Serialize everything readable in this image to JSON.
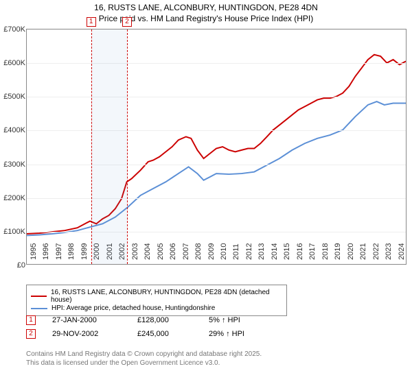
{
  "chart": {
    "type": "line",
    "title_line1": "16, RUSTS LANE, ALCONBURY, HUNTINGDON, PE28 4DN",
    "title_line2": "Price paid vs. HM Land Registry's House Price Index (HPI)",
    "title_fontsize": 12,
    "plot_bg": "#ffffff",
    "border_color": "#888888",
    "grid_color": "#eeeeee",
    "x": {
      "min": 1995,
      "max": 2025,
      "ticks": [
        1995,
        1996,
        1997,
        1998,
        1999,
        2000,
        2001,
        2002,
        2003,
        2004,
        2005,
        2006,
        2007,
        2008,
        2009,
        2010,
        2011,
        2012,
        2013,
        2014,
        2015,
        2016,
        2017,
        2018,
        2019,
        2020,
        2021,
        2022,
        2023,
        2024
      ],
      "label_fontsize": 11,
      "label_rotation": -90
    },
    "y": {
      "min": 0,
      "max": 700000,
      "ticks": [
        0,
        100000,
        200000,
        300000,
        400000,
        500000,
        600000,
        700000
      ],
      "tick_labels": [
        "£0",
        "£100K",
        "£200K",
        "£300K",
        "£400K",
        "£500K",
        "£600K",
        "£700K"
      ],
      "label_fontsize": 11
    },
    "shaded_region": {
      "x_start": 2000.07,
      "x_end": 2002.91,
      "color": "rgba(100,150,200,0.08)"
    },
    "markers": [
      {
        "id": "1",
        "x": 2000.07,
        "color": "#cc0000",
        "box_top_offset": -18
      },
      {
        "id": "2",
        "x": 2002.91,
        "color": "#cc0000",
        "box_top_offset": -18
      }
    ],
    "series": [
      {
        "name": "price_paid",
        "label": "16, RUSTS LANE, ALCONBURY, HUNTINGDON, PE28 4DN (detached house)",
        "color": "#cc0000",
        "line_width": 2,
        "data": [
          [
            1995,
            90000
          ],
          [
            1996,
            92000
          ],
          [
            1997,
            96000
          ],
          [
            1998,
            100000
          ],
          [
            1999,
            108000
          ],
          [
            2000,
            128000
          ],
          [
            2000.5,
            120000
          ],
          [
            2001,
            135000
          ],
          [
            2001.5,
            145000
          ],
          [
            2002,
            165000
          ],
          [
            2002.5,
            195000
          ],
          [
            2002.91,
            245000
          ],
          [
            2003.3,
            255000
          ],
          [
            2004,
            280000
          ],
          [
            2004.6,
            305000
          ],
          [
            2005,
            310000
          ],
          [
            2005.5,
            320000
          ],
          [
            2006,
            335000
          ],
          [
            2006.5,
            350000
          ],
          [
            2007,
            370000
          ],
          [
            2007.6,
            380000
          ],
          [
            2008,
            375000
          ],
          [
            2008.5,
            340000
          ],
          [
            2009,
            315000
          ],
          [
            2009.5,
            330000
          ],
          [
            2010,
            345000
          ],
          [
            2010.5,
            350000
          ],
          [
            2011,
            340000
          ],
          [
            2011.5,
            335000
          ],
          [
            2012,
            340000
          ],
          [
            2012.5,
            345000
          ],
          [
            2013,
            345000
          ],
          [
            2013.5,
            360000
          ],
          [
            2014,
            380000
          ],
          [
            2014.5,
            400000
          ],
          [
            2015,
            415000
          ],
          [
            2015.5,
            430000
          ],
          [
            2016,
            445000
          ],
          [
            2016.5,
            460000
          ],
          [
            2017,
            470000
          ],
          [
            2017.5,
            480000
          ],
          [
            2018,
            490000
          ],
          [
            2018.5,
            495000
          ],
          [
            2019,
            495000
          ],
          [
            2019.5,
            500000
          ],
          [
            2020,
            510000
          ],
          [
            2020.5,
            530000
          ],
          [
            2021,
            560000
          ],
          [
            2021.5,
            585000
          ],
          [
            2022,
            610000
          ],
          [
            2022.5,
            625000
          ],
          [
            2023,
            620000
          ],
          [
            2023.5,
            600000
          ],
          [
            2024,
            610000
          ],
          [
            2024.5,
            595000
          ],
          [
            2025,
            605000
          ]
        ]
      },
      {
        "name": "hpi",
        "label": "HPI: Average price, detached house, Huntingdonshire",
        "color": "#5b8fd6",
        "line_width": 2,
        "data": [
          [
            1995,
            85000
          ],
          [
            1996,
            87000
          ],
          [
            1997,
            90000
          ],
          [
            1998,
            94000
          ],
          [
            1999,
            100000
          ],
          [
            2000,
            110000
          ],
          [
            2001,
            120000
          ],
          [
            2002,
            140000
          ],
          [
            2003,
            170000
          ],
          [
            2004,
            205000
          ],
          [
            2005,
            225000
          ],
          [
            2006,
            245000
          ],
          [
            2007,
            270000
          ],
          [
            2007.8,
            290000
          ],
          [
            2008.5,
            270000
          ],
          [
            2009,
            250000
          ],
          [
            2009.5,
            260000
          ],
          [
            2010,
            270000
          ],
          [
            2011,
            268000
          ],
          [
            2012,
            270000
          ],
          [
            2013,
            275000
          ],
          [
            2014,
            295000
          ],
          [
            2015,
            315000
          ],
          [
            2016,
            340000
          ],
          [
            2017,
            360000
          ],
          [
            2018,
            375000
          ],
          [
            2019,
            385000
          ],
          [
            2020,
            400000
          ],
          [
            2021,
            440000
          ],
          [
            2022,
            475000
          ],
          [
            2022.7,
            485000
          ],
          [
            2023.3,
            475000
          ],
          [
            2024,
            480000
          ],
          [
            2025,
            480000
          ]
        ]
      }
    ]
  },
  "legend": {
    "border_color": "#888888",
    "fontsize": 10
  },
  "info_rows": [
    {
      "marker_id": "1",
      "marker_color": "#cc0000",
      "date": "27-JAN-2000",
      "price": "£128,000",
      "pct": "5% ↑ HPI"
    },
    {
      "marker_id": "2",
      "marker_color": "#cc0000",
      "date": "29-NOV-2002",
      "price": "£245,000",
      "pct": "29% ↑ HPI"
    }
  ],
  "footer": {
    "line1": "Contains HM Land Registry data © Crown copyright and database right 2025.",
    "line2": "This data is licensed under the Open Government Licence v3.0.",
    "color": "#777777",
    "fontsize": 10
  }
}
